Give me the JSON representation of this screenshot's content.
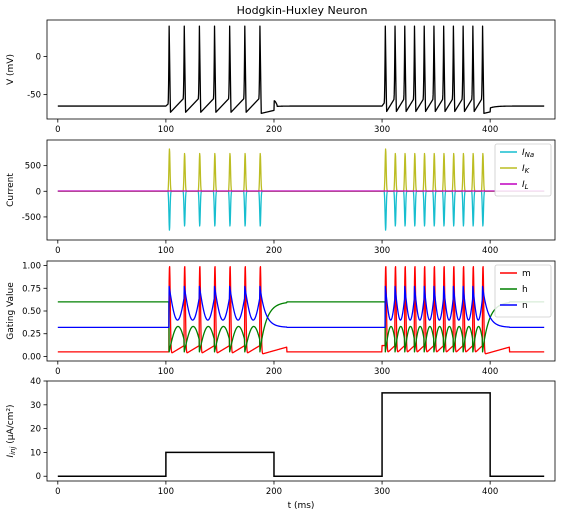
{
  "figure": {
    "title": "Hodgkin-Huxley Neuron"
  },
  "chart_data": [
    {
      "type": "line",
      "title": "Hodgkin-Huxley Neuron",
      "xlabel": "",
      "ylabel": "V (mV)",
      "xlim": [
        -10,
        460
      ],
      "ylim": [
        -82,
        48
      ],
      "xticks": [
        0,
        100,
        200,
        300,
        400
      ],
      "yticks": [
        0,
        -50
      ],
      "grid": false,
      "stimulus": [
        [
          0,
          100,
          0
        ],
        [
          100,
          200,
          10
        ],
        [
          200,
          300,
          0
        ],
        [
          300,
          400,
          35
        ],
        [
          400,
          450,
          0
        ]
      ],
      "spike_times": [
        103,
        117,
        131,
        145,
        159,
        173,
        187,
        303,
        312,
        321,
        330,
        339,
        348,
        357,
        366,
        375,
        384,
        393
      ],
      "resting_mV": -65,
      "series": [
        {
          "color": "#000000",
          "peak": 40,
          "trough": -75
        }
      ]
    },
    {
      "type": "line",
      "xlabel": "",
      "ylabel": "Current",
      "xlim": [
        -10,
        460
      ],
      "ylim": [
        -950,
        1000
      ],
      "xticks": [
        0,
        100,
        200,
        300,
        400
      ],
      "yticks": [
        500,
        0,
        -500
      ],
      "grid": false,
      "legend": "top-right",
      "series": [
        {
          "name": "I",
          "sub": "Na",
          "color": "#17becf",
          "first_spike_value": -780,
          "spike_value": -680
        },
        {
          "name": "I",
          "sub": "K",
          "color": "#bcbd22",
          "first_spike_value": 840,
          "spike_value": 740
        },
        {
          "name": "I",
          "sub": "L",
          "color": "#bf00bf",
          "first_spike_value": 5,
          "spike_value": 5
        }
      ]
    },
    {
      "type": "line",
      "xlabel": "",
      "ylabel": "Gating Value",
      "xlim": [
        -10,
        460
      ],
      "ylim": [
        -0.05,
        1.05
      ],
      "xticks": [
        0,
        100,
        200,
        300,
        400
      ],
      "yticks": [
        1.0,
        0.75,
        0.5,
        0.25,
        0.0
      ],
      "ytick_labels": [
        "1.00",
        "0.75",
        "0.50",
        "0.25",
        "0.00"
      ],
      "grid": false,
      "legend": "top-right",
      "series": [
        {
          "name": "m",
          "color": "#ff0000",
          "rest": 0.05,
          "peak": 1.0,
          "min": 0.02
        },
        {
          "name": "h",
          "color": "#008000",
          "rest": 0.6,
          "peak": 0.33,
          "min": 0.05
        },
        {
          "name": "n",
          "color": "#0000ff",
          "rest": 0.32,
          "peak": 0.77,
          "min": 0.4
        }
      ]
    },
    {
      "type": "line",
      "xlabel": "t (ms)",
      "ylabel": "I",
      "ylabel_sub": "inj",
      "ylabel_unit": "(μA/cm²)",
      "xlim": [
        -10,
        460
      ],
      "ylim": [
        -2,
        40
      ],
      "xticks": [
        0,
        100,
        200,
        300,
        400
      ],
      "yticks": [
        40,
        30,
        20,
        10,
        0
      ],
      "grid": false,
      "series": [
        {
          "color": "#000000",
          "x": [
            0,
            100,
            100,
            200,
            200,
            300,
            300,
            400,
            400,
            450
          ],
          "y": [
            0,
            0,
            10,
            10,
            0,
            0,
            35,
            35,
            0,
            0
          ]
        }
      ]
    }
  ]
}
